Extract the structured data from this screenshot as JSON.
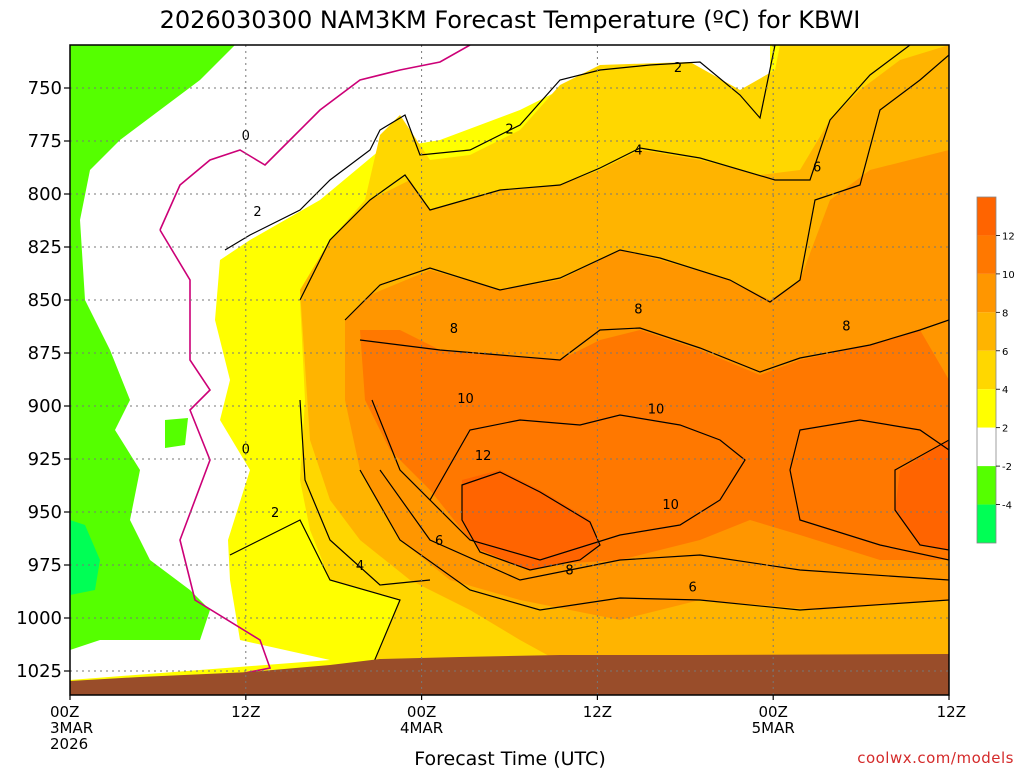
{
  "chart_data": {
    "type": "heatmap",
    "title": "2026030300 NAM3KM Forecast Temperature (ºC) for KBWI",
    "xlabel": "Forecast Time (UTC)",
    "ylabel": "",
    "y_ticks": [
      "750",
      "775",
      "800",
      "825",
      "850",
      "875",
      "900",
      "925",
      "950",
      "975",
      "1000",
      "1025"
    ],
    "y_values": [
      750,
      775,
      800,
      825,
      850,
      875,
      900,
      925,
      950,
      975,
      1000,
      1025
    ],
    "x_ticks": [
      {
        "hour": 0,
        "lines": [
          "00Z",
          "3MAR",
          "2026"
        ]
      },
      {
        "hour": 12,
        "lines": [
          "12Z"
        ]
      },
      {
        "hour": 24,
        "lines": [
          "00Z",
          "4MAR"
        ]
      },
      {
        "hour": 36,
        "lines": [
          "12Z"
        ]
      },
      {
        "hour": 48,
        "lines": [
          "00Z",
          "5MAR"
        ]
      },
      {
        "hour": 60,
        "lines": [
          "12Z"
        ]
      }
    ],
    "xlim": [
      0,
      60
    ],
    "ylim_hpa": [
      725,
      1035
    ],
    "colorbar": {
      "levels": [
        -4,
        -2,
        2,
        4,
        6,
        8,
        10,
        12
      ],
      "labels": [
        "-4",
        "-2",
        "2",
        "4",
        "6",
        "8",
        "10",
        "12"
      ],
      "colors": [
        "#00ff55",
        "#55ff00",
        "#ffffff",
        "#ffff00",
        "#ffd700",
        "#ffb400",
        "#ff9600",
        "#ff7800",
        "#ff6400"
      ]
    },
    "contour_labels": [
      {
        "text": "0",
        "hour": 12.0,
        "p": 774
      },
      {
        "text": "0",
        "hour": 12.0,
        "p": 922
      },
      {
        "text": "2",
        "hour": 12.8,
        "p": 810
      },
      {
        "text": "2",
        "hour": 14.0,
        "p": 952
      },
      {
        "text": "2",
        "hour": 30.0,
        "p": 771
      },
      {
        "text": "2",
        "hour": 41.5,
        "p": 742
      },
      {
        "text": "4",
        "hour": 19.8,
        "p": 977
      },
      {
        "text": "4",
        "hour": 38.8,
        "p": 781
      },
      {
        "text": "6",
        "hour": 25.2,
        "p": 965
      },
      {
        "text": "6",
        "hour": 42.5,
        "p": 987
      },
      {
        "text": "6",
        "hour": 51.0,
        "p": 789
      },
      {
        "text": "8",
        "hour": 26.2,
        "p": 865
      },
      {
        "text": "8",
        "hour": 38.8,
        "p": 856
      },
      {
        "text": "8",
        "hour": 34.1,
        "p": 979
      },
      {
        "text": "8",
        "hour": 53.0,
        "p": 864
      },
      {
        "text": "10",
        "hour": 27.0,
        "p": 898
      },
      {
        "text": "10",
        "hour": 40.0,
        "p": 903
      },
      {
        "text": "10",
        "hour": 41.0,
        "p": 948
      },
      {
        "text": "12",
        "hour": 28.2,
        "p": 925
      }
    ],
    "credit": "coolwx.com/models"
  }
}
